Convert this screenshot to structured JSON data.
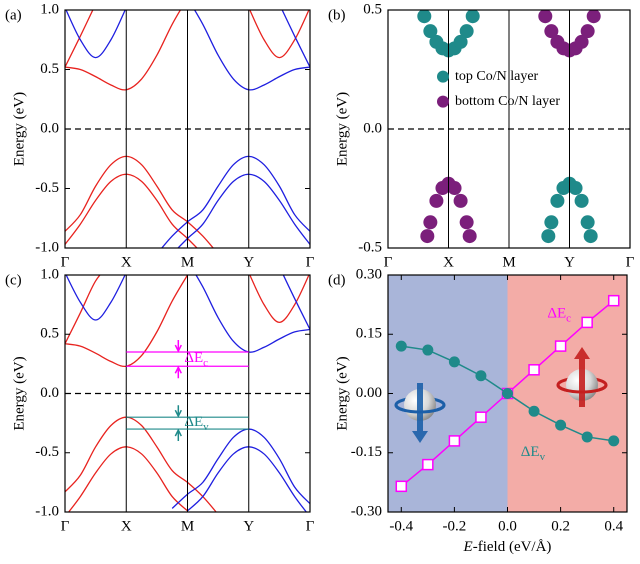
{
  "chart_data": [
    {
      "type": "line",
      "panel_label": "(a)",
      "ylabel": "Energy (eV)",
      "smooth": true,
      "vlines": true,
      "hline": 0,
      "xlim": [
        0,
        4
      ],
      "xticks": [
        {
          "value": 0,
          "label": "Γ"
        },
        {
          "value": 1,
          "label": "X"
        },
        {
          "value": 2,
          "label": "M"
        },
        {
          "value": 3,
          "label": "Y"
        },
        {
          "value": 4,
          "label": "Γ"
        }
      ],
      "ylim": [
        -1,
        1
      ],
      "yticks": [
        {
          "value": -1,
          "label": "-1.0"
        },
        -0.5,
        {
          "value": 0,
          "label": "0.0"
        },
        0.5,
        {
          "value": 1,
          "label": "1.0"
        }
      ],
      "x": [
        0,
        0.25,
        0.5,
        0.75,
        1,
        1.25,
        1.5,
        1.75,
        2,
        2.25,
        2.5,
        2.75,
        3,
        3.25,
        3.5,
        3.75,
        4
      ],
      "series": [
        {
          "color": "#e8231f",
          "values": [
            -0.86,
            -0.72,
            -0.48,
            -0.3,
            -0.23,
            -0.3,
            -0.48,
            -0.68,
            -0.78,
            -0.9,
            -1.05,
            null,
            null,
            null,
            null,
            null,
            null
          ]
        },
        {
          "color": "#e8231f",
          "values": [
            -0.97,
            -0.8,
            -0.6,
            -0.44,
            -0.38,
            -0.44,
            -0.6,
            -0.8,
            -0.92,
            -1.05,
            null,
            null,
            null,
            null,
            null,
            null,
            null
          ]
        },
        {
          "color": "#1f1fe0",
          "values": [
            null,
            null,
            null,
            null,
            null,
            null,
            -1.05,
            -0.9,
            -0.78,
            -0.68,
            -0.48,
            -0.3,
            -0.23,
            -0.3,
            -0.48,
            -0.72,
            -0.86
          ]
        },
        {
          "color": "#1f1fe0",
          "values": [
            null,
            null,
            null,
            null,
            null,
            null,
            null,
            -1.05,
            -0.92,
            -0.8,
            -0.6,
            -0.44,
            -0.38,
            -0.44,
            -0.6,
            -0.8,
            -0.97
          ]
        },
        {
          "color": "#e8231f",
          "values": [
            0.52,
            0.5,
            0.44,
            0.37,
            0.33,
            0.42,
            0.62,
            0.88,
            1.1,
            null,
            null,
            null,
            null,
            null,
            null,
            null,
            null
          ]
        },
        {
          "color": "#e8231f",
          "values": [
            0.52,
            0.78,
            1.05,
            null,
            null,
            null,
            null,
            null,
            null,
            null,
            null,
            null,
            null,
            null,
            null,
            null,
            null
          ]
        },
        {
          "color": "#e8231f",
          "values": [
            null,
            null,
            null,
            null,
            null,
            null,
            null,
            null,
            null,
            null,
            null,
            null,
            1.02,
            0.75,
            0.6,
            0.75,
            1.02
          ]
        },
        {
          "color": "#1f1fe0",
          "values": [
            null,
            null,
            null,
            null,
            null,
            null,
            null,
            null,
            1.1,
            0.88,
            0.62,
            0.42,
            0.33,
            0.37,
            0.44,
            0.5,
            0.52
          ]
        },
        {
          "color": "#1f1fe0",
          "values": [
            1.02,
            0.75,
            0.6,
            0.75,
            1.02,
            null,
            null,
            null,
            null,
            null,
            null,
            null,
            null,
            null,
            null,
            null,
            null
          ]
        },
        {
          "color": "#1f1fe0",
          "values": [
            null,
            null,
            null,
            null,
            null,
            null,
            null,
            null,
            null,
            null,
            null,
            null,
            null,
            null,
            1.05,
            0.78,
            0.52
          ]
        }
      ]
    },
    {
      "type": "scatter",
      "panel_label": "(b)",
      "ylabel": "Energy (eV)",
      "vlines": true,
      "hline": 0,
      "legend": "center right",
      "xlim": [
        0,
        4
      ],
      "xticks": [
        {
          "value": 0,
          "label": "Γ"
        },
        {
          "value": 1,
          "label": "X"
        },
        {
          "value": 2,
          "label": "M"
        },
        {
          "value": 3,
          "label": "Y"
        },
        {
          "value": 4,
          "label": "Γ"
        }
      ],
      "ylim": [
        -0.5,
        0.5
      ],
      "yticks": [
        -0.5,
        {
          "value": 0,
          "label": "0.0"
        },
        0.5
      ],
      "series": [
        {
          "name": "top Co/N layer",
          "color": "#1f8a8a",
          "x": [
            0.6,
            0.7,
            0.8,
            0.9,
            1,
            1.1,
            1.2,
            1.3,
            1.4,
            2.65,
            2.7,
            2.8,
            2.9,
            3,
            3.1,
            3.2,
            3.3,
            3.35
          ],
          "values": [
            0.474,
            0.411,
            0.366,
            0.339,
            0.33,
            0.339,
            0.366,
            0.411,
            0.474,
            -0.45,
            -0.392,
            -0.302,
            -0.248,
            -0.23,
            -0.248,
            -0.302,
            -0.392,
            -0.45
          ]
        },
        {
          "name": "bottom Co/N layer",
          "color": "#7b1f7b",
          "x": [
            0.65,
            0.7,
            0.8,
            0.9,
            1,
            1.1,
            1.2,
            1.3,
            1.35,
            2.6,
            2.7,
            2.8,
            2.9,
            3,
            3.1,
            3.2,
            3.3,
            3.4
          ],
          "values": [
            -0.45,
            -0.392,
            -0.302,
            -0.248,
            -0.23,
            -0.248,
            -0.302,
            -0.392,
            -0.45,
            0.474,
            0.411,
            0.366,
            0.339,
            0.33,
            0.339,
            0.366,
            0.411,
            0.474
          ]
        }
      ]
    },
    {
      "type": "line",
      "panel_label": "(c)",
      "ylabel": "Energy (eV)",
      "smooth": true,
      "vlines": true,
      "hline": 0,
      "xlim": [
        0,
        4
      ],
      "xticks": [
        {
          "value": 0,
          "label": "Γ"
        },
        {
          "value": 1,
          "label": "X"
        },
        {
          "value": 2,
          "label": "M"
        },
        {
          "value": 3,
          "label": "Y"
        },
        {
          "value": 4,
          "label": "Γ"
        }
      ],
      "ylim": [
        -1,
        1
      ],
      "yticks": [
        {
          "value": -1,
          "label": "-1.0"
        },
        -0.5,
        {
          "value": 0,
          "label": "0.0"
        },
        0.5,
        {
          "value": 1,
          "label": "1.0"
        }
      ],
      "x": [
        0,
        0.25,
        0.5,
        0.75,
        1,
        1.25,
        1.5,
        1.75,
        2,
        2.25,
        2.5,
        2.75,
        3,
        3.25,
        3.5,
        3.75,
        4
      ],
      "annotations": [
        {
          "text": "ΔEc",
          "color": "#ff00ff",
          "range": [
            0.23,
            0.35
          ]
        },
        {
          "text": "ΔEv",
          "color": "#1f8a8a",
          "range": [
            -0.3,
            -0.2
          ]
        }
      ],
      "series": [
        {
          "color": "#e8231f",
          "values": [
            -0.83,
            -0.69,
            -0.45,
            -0.27,
            -0.2,
            -0.27,
            -0.45,
            -0.65,
            -0.75,
            -0.87,
            -1.02,
            null,
            null,
            null,
            null,
            null,
            null
          ]
        },
        {
          "color": "#e8231f",
          "values": [
            -1.04,
            -0.87,
            -0.67,
            -0.51,
            -0.45,
            -0.51,
            -0.67,
            -0.87,
            -0.99,
            null,
            null,
            null,
            null,
            null,
            null,
            null,
            null
          ]
        },
        {
          "color": "#1f1fe0",
          "values": [
            null,
            null,
            null,
            null,
            null,
            null,
            null,
            -0.97,
            -0.85,
            -0.75,
            -0.55,
            -0.37,
            -0.3,
            -0.37,
            -0.55,
            -0.79,
            -0.93
          ]
        },
        {
          "color": "#1f1fe0",
          "values": [
            null,
            null,
            null,
            null,
            null,
            null,
            null,
            null,
            -0.99,
            -0.87,
            -0.67,
            -0.51,
            -0.45,
            -0.51,
            -0.67,
            -0.87,
            -1.04
          ]
        },
        {
          "color": "#e8231f",
          "values": [
            0.42,
            0.4,
            0.34,
            0.27,
            0.23,
            0.32,
            0.52,
            0.78,
            1.0,
            null,
            null,
            null,
            null,
            null,
            null,
            null,
            null
          ]
        },
        {
          "color": "#e8231f",
          "values": [
            0.42,
            0.68,
            0.95,
            1.1,
            null,
            null,
            null,
            null,
            null,
            null,
            null,
            null,
            null,
            null,
            null,
            null,
            null
          ]
        },
        {
          "color": "#e8231f",
          "values": [
            null,
            null,
            null,
            null,
            null,
            null,
            null,
            null,
            null,
            null,
            null,
            null,
            1.02,
            0.75,
            0.6,
            0.75,
            1.02
          ]
        },
        {
          "color": "#1f1fe0",
          "values": [
            null,
            null,
            null,
            null,
            null,
            null,
            null,
            null,
            1.12,
            0.9,
            0.64,
            0.44,
            0.35,
            0.39,
            0.46,
            0.52,
            0.54
          ]
        },
        {
          "color": "#1f1fe0",
          "values": [
            1.02,
            0.77,
            0.62,
            0.77,
            1.02,
            null,
            null,
            null,
            null,
            null,
            null,
            null,
            null,
            null,
            null,
            null,
            null
          ]
        },
        {
          "color": "#1f1fe0",
          "values": [
            null,
            null,
            null,
            null,
            null,
            null,
            null,
            null,
            null,
            null,
            null,
            null,
            null,
            null,
            1.07,
            0.8,
            0.54
          ]
        }
      ]
    },
    {
      "type": "line",
      "panel_label": "(d)",
      "ylabel": "Energy (eV)",
      "xlabel": "E-field (eV/Å)",
      "xlim": [
        -0.45,
        0.45
      ],
      "xticks": [
        -0.4,
        -0.2,
        {
          "value": 0,
          "label": "0.0"
        },
        0.2,
        0.4
      ],
      "ylim": [
        -0.3,
        0.3
      ],
      "yticks": [
        {
          "value": -0.3,
          "label": "-0.30"
        },
        -0.15,
        {
          "value": 0,
          "label": "0.00"
        },
        0.15,
        {
          "value": 0.3,
          "label": "0.30"
        }
      ],
      "shaded_regions": [
        {
          "from": -0.45,
          "to": 0,
          "color": "#a9b5d9"
        },
        {
          "from": 0,
          "to": 0.45,
          "color": "#f3aca7"
        }
      ],
      "x": [
        -0.4,
        -0.3,
        -0.2,
        -0.1,
        0,
        0.1,
        0.2,
        0.3,
        0.4
      ],
      "series": [
        {
          "name": "ΔEc",
          "color": "#ff00ff",
          "marker": "square",
          "values": [
            -0.235,
            -0.18,
            -0.12,
            -0.06,
            0,
            0.06,
            0.12,
            0.18,
            0.235
          ]
        },
        {
          "name": "ΔEv",
          "color": "#1f8a8a",
          "marker": "circle",
          "values": [
            0.12,
            0.11,
            0.08,
            0.045,
            0,
            -0.045,
            -0.08,
            -0.11,
            -0.12
          ]
        }
      ]
    }
  ]
}
